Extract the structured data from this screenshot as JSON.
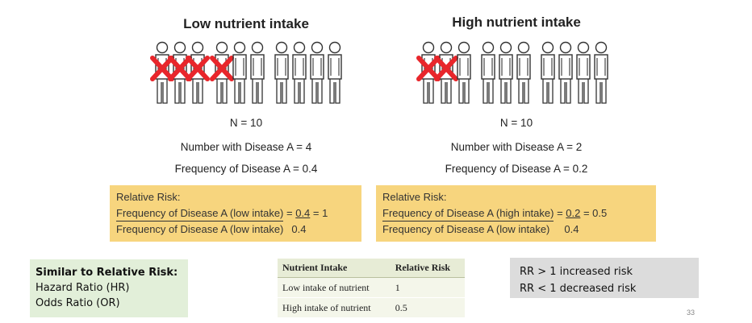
{
  "low": {
    "title": "Low nutrient intake",
    "n": "N = 10",
    "cases": "Number with Disease A = 4",
    "frequency": "Frequency of Disease A = 0.4",
    "total_people": 10,
    "diseased_people": 4
  },
  "high": {
    "title": "High nutrient intake",
    "n": "N = 10",
    "cases": "Number with Disease A = 2",
    "frequency": "Frequency of Disease A = 0.2",
    "total_people": 10,
    "diseased_people": 2
  },
  "rr_low": {
    "label": "Relative Risk:",
    "numerator": "Frequency of Disease A (low intake)",
    "equals": " = ",
    "num_value": "0.4",
    "result": " = 1",
    "denominator": "Frequency of Disease A (low intake)",
    "den_value": "0.4"
  },
  "rr_high": {
    "label": "Relative Risk:",
    "numerator": "Frequency of Disease A (high intake)",
    "equals": " = ",
    "num_value": "0.2",
    "result": " = 0.5",
    "denominator": "Frequency of Disease A (low intake)",
    "den_value": "0.4"
  },
  "similar": {
    "heading": "Similar to Relative Risk:",
    "items": [
      "Hazard Ratio (HR)",
      "Odds Ratio (OR)"
    ]
  },
  "table": {
    "headers": [
      "Nutrient Intake",
      "Relative Risk"
    ],
    "rows": [
      [
        "Low intake of nutrient",
        "1"
      ],
      [
        "High intake of nutrient",
        "0.5"
      ]
    ]
  },
  "interpretation": {
    "lines": [
      "RR > 1 increased risk",
      "RR < 1 decreased risk"
    ]
  },
  "page_number": "33",
  "colors": {
    "cross": "#e8262b",
    "box_yellow": "#f7d57e",
    "box_green": "#e2efd9",
    "box_gray": "#dcdcdc"
  }
}
